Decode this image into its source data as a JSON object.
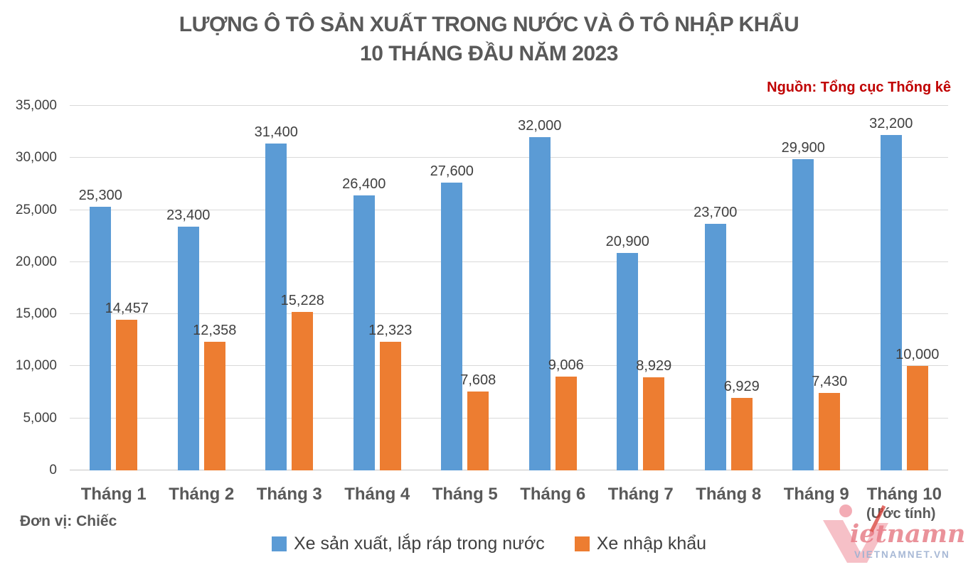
{
  "title": {
    "line1": "LƯỢNG Ô TÔ SẢN XUẤT TRONG NƯỚC VÀ Ô TÔ NHẬP KHẨU",
    "line2": "10 THÁNG ĐẦU NĂM 2023"
  },
  "source": "Nguồn: Tổng cục Thống kê",
  "unit_note": "Đơn vị: Chiếc",
  "estimate_note": "(Ước tính)",
  "watermark": {
    "brand": "ietnamnet",
    "url": "VIETNAMNET.VN"
  },
  "colors": {
    "blue": "#5B9BD5",
    "orange": "#ED7D31",
    "title_gray": "#595959",
    "label_gray": "#404040",
    "source_red": "#C00000",
    "gridline": "#D9D9D9"
  },
  "chart_data": {
    "type": "bar",
    "title": "LƯỢNG Ô TÔ SẢN XUẤT TRONG NƯỚC VÀ Ô TÔ NHẬP KHẨU 10 THÁNG ĐẦU NĂM 2023",
    "categories": [
      "Tháng 1",
      "Tháng 2",
      "Tháng 3",
      "Tháng 4",
      "Tháng 5",
      "Tháng 6",
      "Tháng 7",
      "Tháng 8",
      "Tháng 9",
      "Tháng 10"
    ],
    "note_on_last_category": "(Ước tính)",
    "series": [
      {
        "name": "Xe sản xuất, lắp ráp trong nước",
        "color": "#5B9BD5",
        "values": [
          25300,
          23400,
          31400,
          26400,
          27600,
          32000,
          20900,
          23700,
          29900,
          32200
        ]
      },
      {
        "name": "Xe nhập khẩu",
        "color": "#ED7D31",
        "values": [
          14457,
          12358,
          15228,
          12323,
          7608,
          9006,
          8929,
          6929,
          7430,
          10000
        ]
      }
    ],
    "xlabel": "",
    "ylabel": "",
    "unit": "Chiếc",
    "ylim": [
      0,
      35000
    ],
    "ytick_step": 5000,
    "yticks": [
      "0",
      "5,000",
      "10,000",
      "15,000",
      "20,000",
      "25,000",
      "30,000",
      "35,000"
    ],
    "grid": true,
    "data_labels": true,
    "legend_position": "bottom"
  }
}
